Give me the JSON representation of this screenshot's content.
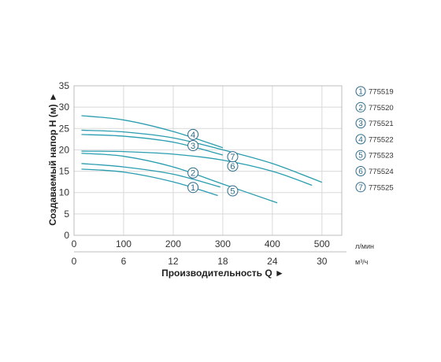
{
  "chart_data": {
    "type": "line",
    "ylabel": "Создаваемый напор H (м) ►",
    "xlabel": "Производительность Q ►",
    "x_unit_primary": "л/мин",
    "x_unit_secondary": "м³/ч",
    "xlim": [
      0,
      540
    ],
    "ylim": [
      0,
      35
    ],
    "x_ticks_primary": [
      "0",
      "100",
      "200",
      "300",
      "400",
      "500"
    ],
    "x_ticks_primary_values": [
      0,
      100,
      200,
      300,
      400,
      500
    ],
    "x_ticks_secondary": [
      "0",
      "6",
      "12",
      "18",
      "24",
      "30"
    ],
    "x_ticks_secondary_values": [
      0,
      6,
      12,
      18,
      24,
      30
    ],
    "y_ticks": [
      "0",
      "5",
      "10",
      "15",
      "20",
      "25",
      "30",
      "35"
    ],
    "y_ticks_values": [
      0,
      5,
      10,
      15,
      20,
      25,
      30,
      35
    ],
    "grid": true,
    "legend_position": "right",
    "line_color": "#2a9db0",
    "marker_color": "#2c6b8a",
    "series": [
      {
        "name": "775519",
        "marker": "1",
        "x": [
          15,
          100,
          200,
          290
        ],
        "y": [
          15.5,
          14.8,
          12.5,
          9.3
        ],
        "marker_x": 240,
        "marker_y": 11.2
      },
      {
        "name": "775520",
        "marker": "2",
        "x": [
          15,
          100,
          200,
          295
        ],
        "y": [
          16.8,
          16.0,
          14.3,
          11.3
        ],
        "marker_x": 240,
        "marker_y": 14.6
      },
      {
        "name": "775521",
        "marker": "3",
        "x": [
          15,
          100,
          200,
          300
        ],
        "y": [
          23.6,
          23.2,
          21.8,
          18.8
        ],
        "marker_x": 240,
        "marker_y": 21.0
      },
      {
        "name": "775522",
        "marker": "4",
        "x": [
          15,
          100,
          200,
          300
        ],
        "y": [
          28.0,
          27.0,
          24.3,
          20.5
        ],
        "marker_x": 240,
        "marker_y": 23.6
      },
      {
        "name": "775523",
        "marker": "5",
        "x": [
          15,
          100,
          200,
          300,
          410
        ],
        "y": [
          19.2,
          18.5,
          16.0,
          12.0,
          7.6
        ],
        "marker_x": 320,
        "marker_y": 10.4
      },
      {
        "name": "775524",
        "marker": "6",
        "x": [
          15,
          100,
          200,
          300,
          400,
          480
        ],
        "y": [
          19.7,
          19.6,
          19.0,
          17.6,
          15.0,
          11.7
        ],
        "marker_x": 320,
        "marker_y": 16.2
      },
      {
        "name": "775525",
        "marker": "7",
        "x": [
          15,
          100,
          200,
          300,
          400,
          500
        ],
        "y": [
          24.6,
          24.2,
          22.8,
          20.0,
          16.8,
          12.4
        ],
        "marker_x": 320,
        "marker_y": 18.4
      }
    ]
  }
}
